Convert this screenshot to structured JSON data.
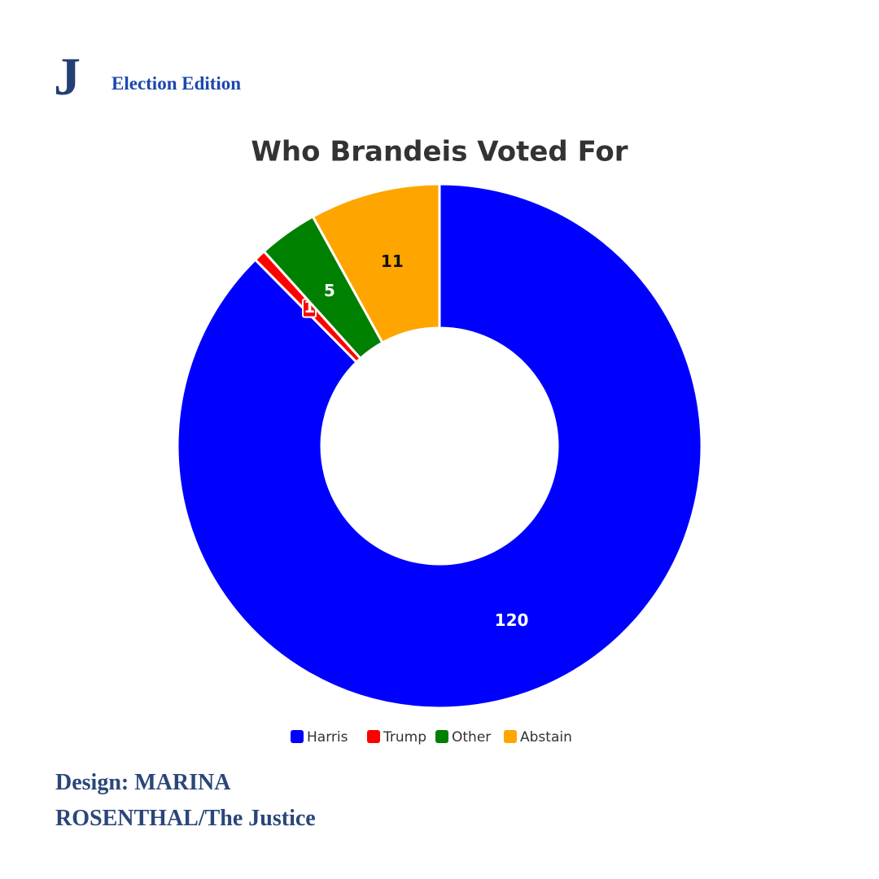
{
  "header": {
    "logo": "J",
    "edition": "Election Edition"
  },
  "chart_data": {
    "type": "donut",
    "title": "Who Brandeis Voted For",
    "categories": [
      "Harris",
      "Trump",
      "Other",
      "Abstain"
    ],
    "values": [
      120,
      1,
      5,
      11
    ],
    "colors": [
      "#0000ff",
      "#ff0000",
      "#008000",
      "#ffa500"
    ],
    "legend": "bottom"
  },
  "footer": {
    "credit": "Design: MARINA ROSENTHAL/The Justice"
  }
}
